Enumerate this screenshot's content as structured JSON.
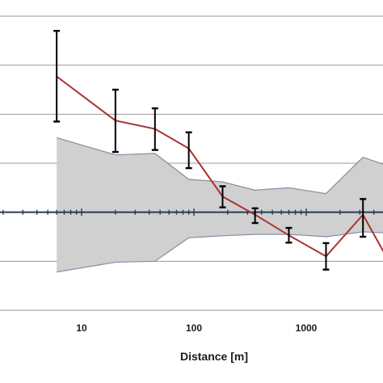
{
  "chart_data": {
    "type": "line",
    "title": "",
    "xlabel": "Distance [m]",
    "ylabel": "",
    "x_scale": "log",
    "x_tick_labels": [
      "10",
      "100",
      "1000"
    ],
    "x_ticks": [
      10,
      100,
      1000
    ],
    "ylim": [
      -2,
      4
    ],
    "yticks": [
      -2,
      -1,
      0,
      1,
      2,
      3,
      4
    ],
    "grid": true,
    "legend": "none",
    "colors": {
      "series_line": "#a83232",
      "error_bars": "#000000",
      "band_fill": "#d0d0d0",
      "band_edge": "#7f8fa6",
      "grid": "#9a9a9a",
      "zero_axis": "#2a3a52"
    },
    "series": [
      {
        "values": [
          {
            "x": 6,
            "y": 2.77,
            "err_low": 1.85,
            "err_high": 3.7
          },
          {
            "x": 20,
            "y": 1.87,
            "err_low": 1.23,
            "err_high": 2.5
          },
          {
            "x": 45,
            "y": 1.7,
            "err_low": 1.27,
            "err_high": 2.12
          },
          {
            "x": 90,
            "y": 1.3,
            "err_low": 0.9,
            "err_high": 1.63
          },
          {
            "x": 180,
            "y": 0.32,
            "err_low": 0.1,
            "err_high": 0.53
          },
          {
            "x": 350,
            "y": -0.05,
            "err_low": -0.22,
            "err_high": 0.08
          },
          {
            "x": 700,
            "y": -0.47,
            "err_low": -0.62,
            "err_high": -0.32
          },
          {
            "x": 1500,
            "y": -0.9,
            "err_low": -1.17,
            "err_high": -0.63
          },
          {
            "x": 3200,
            "y": -0.05,
            "err_low": -0.5,
            "err_high": 0.27
          },
          {
            "x": 5000,
            "y": -0.85
          }
        ]
      }
    ],
    "band": {
      "x": [
        6,
        20,
        45,
        90,
        180,
        350,
        700,
        1500,
        3200,
        5000
      ],
      "upper": [
        1.52,
        1.17,
        1.2,
        0.67,
        0.62,
        0.45,
        0.5,
        0.38,
        1.12,
        0.97
      ],
      "lower": [
        -1.22,
        -1.02,
        -1.0,
        -0.52,
        -0.48,
        -0.45,
        -0.45,
        -0.5,
        -0.4,
        -0.42
      ]
    }
  }
}
